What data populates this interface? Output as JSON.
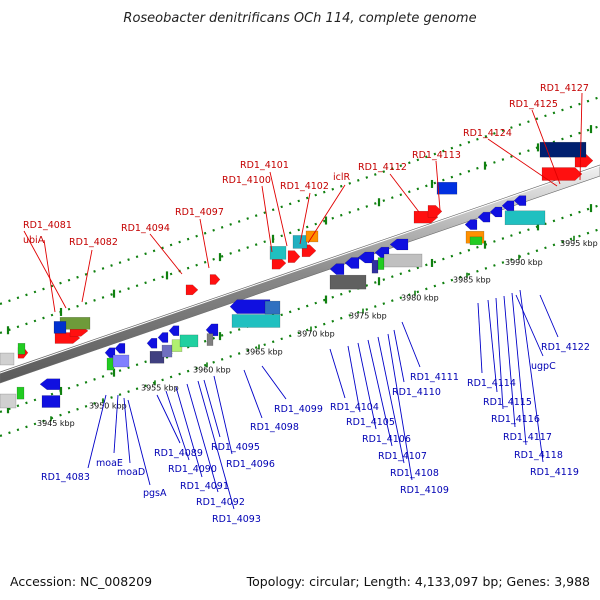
{
  "title": "Roseobacter denitrificans OCh 114, complete genome",
  "footer": {
    "accession": "Accession: NC_008209",
    "summary": "Topology: circular; Length: 4,133,097 bp; Genes: 3,988"
  },
  "colors": {
    "forward_label": "#c40000",
    "reverse_label": "#0000b4",
    "track_green": "#108010",
    "backbone": "#909090"
  },
  "ruler_ticks": [
    "3945 kbp",
    "3950 kbp",
    "3955 kbp",
    "3960 kbp",
    "3965 kbp",
    "3970 kbp",
    "3975 kbp",
    "3980 kbp",
    "3985 kbp",
    "3990 kbp",
    "3995 kbp"
  ],
  "forward_labels": [
    "ubiA",
    "RD1_4081",
    "RD1_4082",
    "RD1_4094",
    "RD1_4097",
    "RD1_4100",
    "RD1_4101",
    "RD1_4102",
    "iclR",
    "RD1_4112",
    "RD1_4113",
    "RD1_4124",
    "RD1_4125",
    "RD1_4127"
  ],
  "reverse_labels": [
    "RD1_4083",
    "moaE",
    "moaD",
    "pgsA",
    "RD1_4089",
    "RD1_4090",
    "RD1_4091",
    "RD1_4092",
    "RD1_4093",
    "RD1_4095",
    "RD1_4096",
    "RD1_4098",
    "RD1_4099",
    "RD1_4104",
    "RD1_4105",
    "RD1_4106",
    "RD1_4107",
    "RD1_4108",
    "RD1_4109",
    "RD1_4110",
    "RD1_4111",
    "RD1_4114",
    "RD1_4115",
    "RD1_4116",
    "RD1_4117",
    "RD1_4118",
    "RD1_4119",
    "ugpC",
    "RD1_4122"
  ]
}
